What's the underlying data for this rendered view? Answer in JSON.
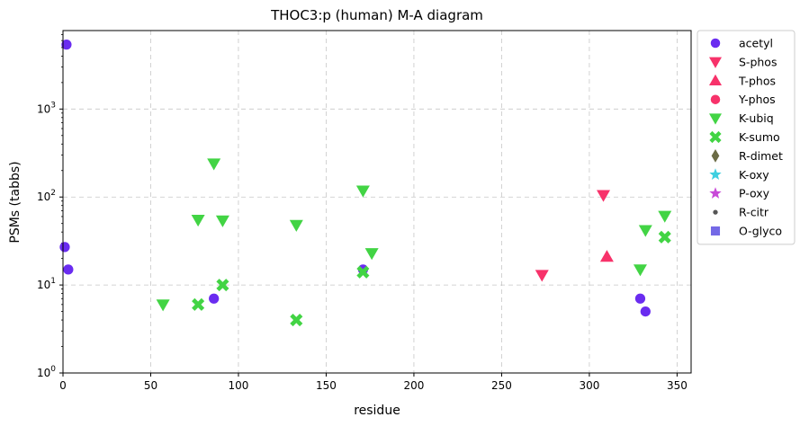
{
  "chart_data": {
    "type": "scatter",
    "title": "THOC3:p (human) M-A diagram",
    "xlabel": "residue",
    "ylabel": "PSMs (tabbs)",
    "xlim": [
      0,
      358
    ],
    "ylim": [
      1,
      7800
    ],
    "yscale": "log",
    "grid": true,
    "legend_position": "outside-right",
    "x_ticks": [
      "0",
      "50",
      "100",
      "150",
      "200",
      "250",
      "300",
      "350"
    ],
    "y_ticks": [
      {
        "value": 1,
        "base": "10",
        "exp": "0"
      },
      {
        "value": 10,
        "base": "10",
        "exp": "1"
      },
      {
        "value": 100,
        "base": "10",
        "exp": "2"
      },
      {
        "value": 1000,
        "base": "10",
        "exp": "3"
      }
    ],
    "series": [
      {
        "name": "acetyl",
        "marker": "circle",
        "color": "#6a2cf0",
        "points": [
          [
            2,
            5400
          ],
          [
            1,
            27
          ],
          [
            3,
            15
          ],
          [
            86,
            7
          ],
          [
            171,
            15
          ],
          [
            329,
            7
          ],
          [
            332,
            5
          ]
        ]
      },
      {
        "name": "S-phos",
        "marker": "triangle-down",
        "color": "#f7326a",
        "points": [
          [
            273,
            13
          ],
          [
            308,
            105
          ]
        ]
      },
      {
        "name": "T-phos",
        "marker": "triangle-up",
        "color": "#f7326a",
        "points": [
          [
            310,
            21
          ]
        ]
      },
      {
        "name": "Y-phos",
        "marker": "circle",
        "color": "#f7326a",
        "points": []
      },
      {
        "name": "K-ubiq",
        "marker": "triangle-down",
        "color": "#42d444",
        "points": [
          [
            57,
            6
          ],
          [
            77,
            55
          ],
          [
            86,
            240
          ],
          [
            91,
            54
          ],
          [
            133,
            48
          ],
          [
            171,
            118
          ],
          [
            176,
            23
          ],
          [
            329,
            15
          ],
          [
            332,
            42
          ],
          [
            343,
            61
          ]
        ]
      },
      {
        "name": "K-sumo",
        "marker": "x",
        "color": "#42d444",
        "points": [
          [
            77,
            6
          ],
          [
            91,
            10
          ],
          [
            133,
            4
          ],
          [
            171,
            14
          ],
          [
            343,
            35
          ]
        ]
      },
      {
        "name": "R-dimet",
        "marker": "diamond",
        "color": "#6b6b45",
        "points": []
      },
      {
        "name": "K-oxy",
        "marker": "star",
        "color": "#3ecfe0",
        "points": []
      },
      {
        "name": "P-oxy",
        "marker": "star",
        "color": "#c84ad8",
        "points": []
      },
      {
        "name": "R-citr",
        "marker": "dot",
        "color": "#555555",
        "points": []
      },
      {
        "name": "O-glyco",
        "marker": "square",
        "color": "#7469e6",
        "points": []
      }
    ]
  }
}
